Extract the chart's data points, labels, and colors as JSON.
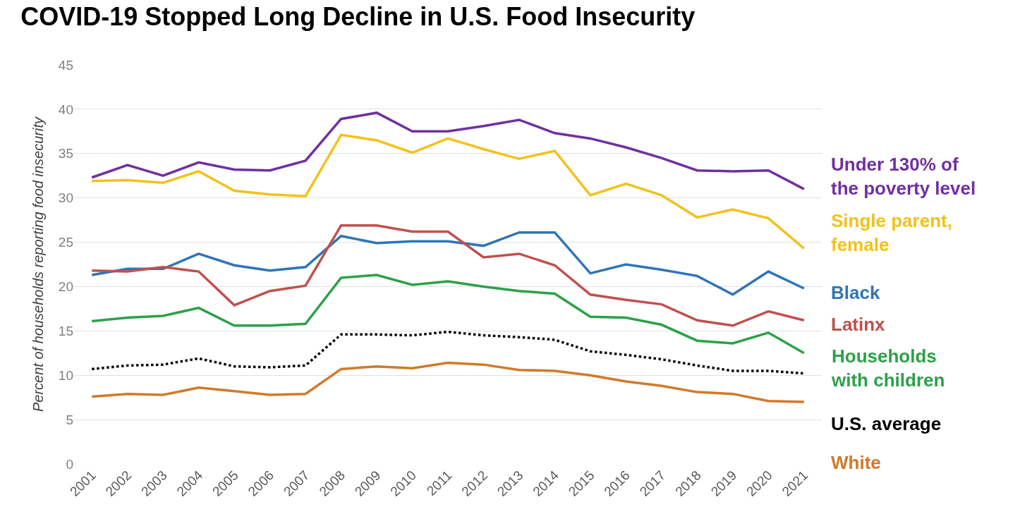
{
  "chart_data": {
    "type": "line",
    "title": "COVID-19 Stopped Long Decline in U.S. Food Insecurity",
    "ylabel": "Percent of households reporting food insecurity",
    "categories": [
      "2001",
      "2002",
      "2003",
      "2004",
      "2005",
      "2006",
      "2007",
      "2008",
      "2009",
      "2010",
      "2011",
      "2012",
      "2013",
      "2014",
      "2015",
      "2016",
      "2017",
      "2018",
      "2019",
      "2020",
      "2021"
    ],
    "ylim": [
      0,
      45
    ],
    "yticks": [
      0,
      5,
      10,
      15,
      20,
      25,
      30,
      35,
      40,
      45
    ],
    "grid": "y",
    "legend": false,
    "marker": "none",
    "series": [
      {
        "name": "Under 130% of\nthe poverty level",
        "color": "#7030a0",
        "values": [
          32.3,
          33.7,
          32.5,
          34.0,
          33.2,
          33.1,
          34.2,
          38.9,
          39.6,
          37.5,
          37.5,
          38.1,
          38.8,
          37.3,
          36.7,
          35.7,
          34.5,
          33.1,
          33.0,
          33.1,
          31.0
        ]
      },
      {
        "name": "Single parent,\nfemale",
        "color": "#f2c21b",
        "values": [
          31.9,
          32.0,
          31.7,
          33.0,
          30.8,
          30.4,
          30.2,
          37.1,
          36.5,
          35.1,
          36.7,
          35.5,
          34.4,
          35.3,
          30.3,
          31.6,
          30.3,
          27.8,
          28.7,
          27.7,
          24.3
        ]
      },
      {
        "name": "Black",
        "color": "#2e75b6",
        "values": [
          21.3,
          22.0,
          22.0,
          23.7,
          22.4,
          21.8,
          22.2,
          25.7,
          24.9,
          25.1,
          25.1,
          24.6,
          26.1,
          26.1,
          21.5,
          22.5,
          21.9,
          21.2,
          19.1,
          21.7,
          19.8
        ]
      },
      {
        "name": "Latinx",
        "color": "#c0504d",
        "values": [
          21.8,
          21.7,
          22.2,
          21.7,
          17.9,
          19.5,
          20.1,
          26.9,
          26.9,
          26.2,
          26.2,
          23.3,
          23.7,
          22.4,
          19.1,
          18.5,
          18.0,
          16.2,
          15.6,
          17.2,
          16.2
        ]
      },
      {
        "name": "Households\nwith children",
        "color": "#2ca14a",
        "values": [
          16.1,
          16.5,
          16.7,
          17.6,
          15.6,
          15.6,
          15.8,
          21.0,
          21.3,
          20.2,
          20.6,
          20.0,
          19.5,
          19.2,
          16.6,
          16.5,
          15.7,
          13.9,
          13.6,
          14.8,
          12.5
        ]
      },
      {
        "name": "U.S. average",
        "color": "#000000",
        "line_style": "dotted",
        "values": [
          10.7,
          11.1,
          11.2,
          11.9,
          11.0,
          10.9,
          11.1,
          14.6,
          14.6,
          14.5,
          14.9,
          14.5,
          14.3,
          14.0,
          12.7,
          12.3,
          11.8,
          11.1,
          10.5,
          10.5,
          10.2
        ]
      },
      {
        "name": "White",
        "color": "#d07a2a",
        "values": [
          7.6,
          7.9,
          7.8,
          8.6,
          8.2,
          7.8,
          7.9,
          10.7,
          11.0,
          10.8,
          11.4,
          11.2,
          10.6,
          10.5,
          10.0,
          9.3,
          8.8,
          8.1,
          7.9,
          7.1,
          7.0
        ]
      }
    ]
  }
}
